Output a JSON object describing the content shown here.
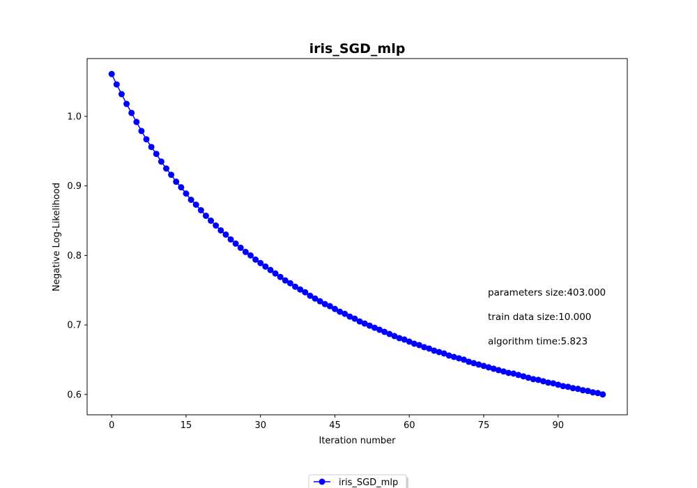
{
  "chart_data": {
    "type": "line",
    "title": "iris_SGD_mlp",
    "xlabel": "Iteration number",
    "ylabel": "Negative Log-Likelihood",
    "xlim": [
      -4.95,
      103.95
    ],
    "ylim": [
      0.5707,
      1.0832
    ],
    "xticks": [
      0,
      15,
      30,
      45,
      60,
      75,
      90
    ],
    "yticks": [
      0.6,
      0.7,
      0.8,
      0.9,
      1.0
    ],
    "grid": false,
    "legend_position": "bottom-center",
    "series": [
      {
        "name": "iris_SGD_mlp",
        "color": "#0000ff",
        "marker": "circle",
        "x": [
          0,
          1,
          2,
          3,
          4,
          5,
          6,
          7,
          8,
          9,
          10,
          11,
          12,
          13,
          14,
          15,
          16,
          17,
          18,
          19,
          20,
          21,
          22,
          23,
          24,
          25,
          26,
          27,
          28,
          29,
          30,
          31,
          32,
          33,
          34,
          35,
          36,
          37,
          38,
          39,
          40,
          41,
          42,
          43,
          44,
          45,
          46,
          47,
          48,
          49,
          50,
          51,
          52,
          53,
          54,
          55,
          56,
          57,
          58,
          59,
          60,
          61,
          62,
          63,
          64,
          65,
          66,
          67,
          68,
          69,
          70,
          71,
          72,
          73,
          74,
          75,
          76,
          77,
          78,
          79,
          80,
          81,
          82,
          83,
          84,
          85,
          86,
          87,
          88,
          89,
          90,
          91,
          92,
          93,
          94,
          95,
          96,
          97,
          98,
          99
        ],
        "values": [
          1.061,
          1.046,
          1.032,
          1.018,
          1.005,
          0.992,
          0.979,
          0.967,
          0.956,
          0.946,
          0.935,
          0.925,
          0.916,
          0.906,
          0.898,
          0.889,
          0.88,
          0.873,
          0.865,
          0.857,
          0.85,
          0.843,
          0.836,
          0.83,
          0.823,
          0.817,
          0.811,
          0.805,
          0.8,
          0.794,
          0.789,
          0.784,
          0.779,
          0.774,
          0.769,
          0.764,
          0.76,
          0.755,
          0.751,
          0.747,
          0.742,
          0.738,
          0.734,
          0.73,
          0.727,
          0.723,
          0.719,
          0.716,
          0.712,
          0.709,
          0.705,
          0.702,
          0.699,
          0.696,
          0.693,
          0.69,
          0.687,
          0.684,
          0.681,
          0.679,
          0.676,
          0.673,
          0.671,
          0.668,
          0.666,
          0.663,
          0.661,
          0.659,
          0.656,
          0.654,
          0.652,
          0.65,
          0.647,
          0.645,
          0.643,
          0.641,
          0.639,
          0.637,
          0.635,
          0.633,
          0.631,
          0.63,
          0.628,
          0.626,
          0.624,
          0.622,
          0.621,
          0.619,
          0.617,
          0.616,
          0.614,
          0.612,
          0.611,
          0.609,
          0.608,
          0.606,
          0.605,
          0.603,
          0.602,
          0.6
        ]
      }
    ],
    "annotations": [
      "parameters size:403.000",
      "train data size:10.000",
      "algorithm time:5.823"
    ]
  }
}
